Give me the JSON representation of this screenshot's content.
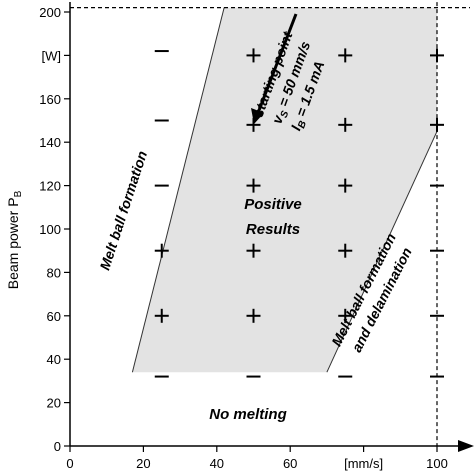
{
  "chart_data": {
    "type": "scatter",
    "title": "",
    "xlabel": "",
    "ylabel": "Beam power P",
    "ylabel_sub": "B",
    "xlim": [
      0,
      110
    ],
    "ylim": [
      0,
      205
    ],
    "x_ticks": [
      "0",
      "20",
      "40",
      "60",
      "[mm/s]",
      "100"
    ],
    "x_tick_values": [
      0,
      20,
      40,
      60,
      80,
      100
    ],
    "y_ticks": [
      "0",
      "20",
      "40",
      "60",
      "80",
      "100",
      "120",
      "140",
      "160",
      "[W]",
      "200"
    ],
    "y_tick_values": [
      0,
      20,
      40,
      60,
      80,
      100,
      120,
      140,
      160,
      180,
      200
    ],
    "grid": false,
    "reference_lines": [
      {
        "orientation": "horizontal",
        "value": 202,
        "style": "dashed"
      },
      {
        "orientation": "vertical",
        "value": 100,
        "style": "dashed"
      }
    ],
    "positive_region_polygon": [
      [
        17,
        34
      ],
      [
        42,
        202
      ],
      [
        100,
        202
      ],
      [
        100,
        145
      ],
      [
        70,
        34
      ]
    ],
    "region_color": "#e3e3e3",
    "points": [
      {
        "x": 25,
        "y": 182,
        "result": "-"
      },
      {
        "x": 25,
        "y": 150,
        "result": "-"
      },
      {
        "x": 25,
        "y": 120,
        "result": "-"
      },
      {
        "x": 25,
        "y": 90,
        "result": "+"
      },
      {
        "x": 25,
        "y": 60,
        "result": "+"
      },
      {
        "x": 25,
        "y": 32,
        "result": "-"
      },
      {
        "x": 50,
        "y": 180,
        "result": "+"
      },
      {
        "x": 50,
        "y": 148,
        "result": "+"
      },
      {
        "x": 50,
        "y": 120,
        "result": "+"
      },
      {
        "x": 50,
        "y": 90,
        "result": "+"
      },
      {
        "x": 50,
        "y": 60,
        "result": "+"
      },
      {
        "x": 50,
        "y": 32,
        "result": "-"
      },
      {
        "x": 75,
        "y": 180,
        "result": "+"
      },
      {
        "x": 75,
        "y": 148,
        "result": "+"
      },
      {
        "x": 75,
        "y": 120,
        "result": "+"
      },
      {
        "x": 75,
        "y": 90,
        "result": "+"
      },
      {
        "x": 75,
        "y": 60,
        "result": "+"
      },
      {
        "x": 75,
        "y": 32,
        "result": "-"
      },
      {
        "x": 100,
        "y": 180,
        "result": "+"
      },
      {
        "x": 100,
        "y": 148,
        "result": "+"
      },
      {
        "x": 100,
        "y": 120,
        "result": "-"
      },
      {
        "x": 100,
        "y": 90,
        "result": "-"
      },
      {
        "x": 100,
        "y": 60,
        "result": "-"
      },
      {
        "x": 100,
        "y": 32,
        "result": "-"
      }
    ],
    "annotations": {
      "positive_line1": "Positive",
      "positive_line2": "Results",
      "no_melting": "No melting",
      "melt_ball": "Melt ball formation",
      "melt_ball_delam_line1": "Melt ball formation",
      "melt_ball_delam_line2": "and delamination",
      "starting_point": "starting point",
      "vs_label": "v",
      "vs_sub": "S",
      "vs_value": " = 50 mm/s",
      "ib_label": "I",
      "ib_sub": "B",
      "ib_value": " = 1.5 mA"
    }
  }
}
